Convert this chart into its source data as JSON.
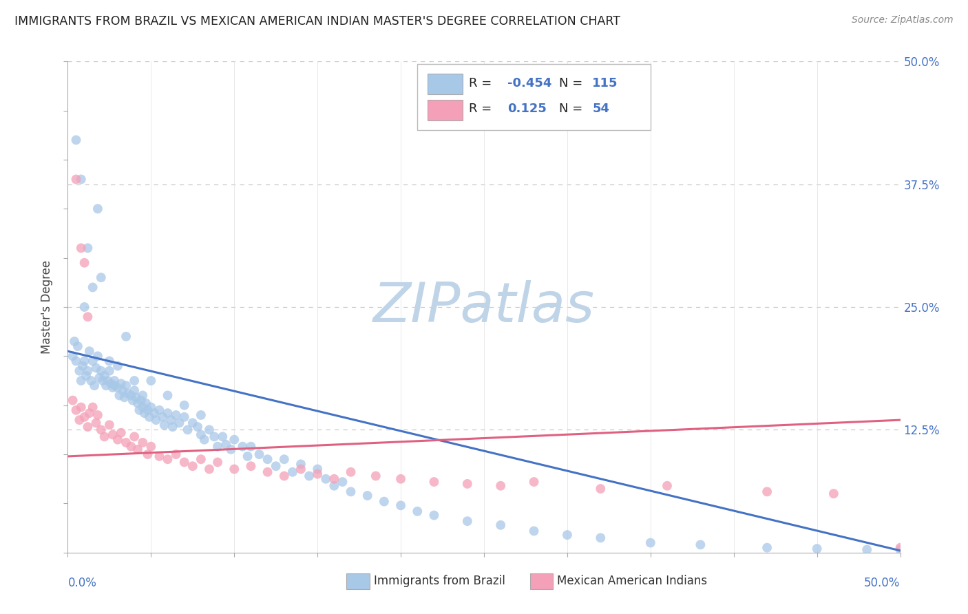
{
  "title": "IMMIGRANTS FROM BRAZIL VS MEXICAN AMERICAN INDIAN MASTER'S DEGREE CORRELATION CHART",
  "source": "Source: ZipAtlas.com",
  "ylabel": "Master's Degree",
  "xlim": [
    0.0,
    0.5
  ],
  "ylim": [
    0.0,
    0.5
  ],
  "right_yticks": [
    0.0,
    0.125,
    0.25,
    0.375,
    0.5
  ],
  "right_yticklabels": [
    "",
    "12.5%",
    "25.0%",
    "37.5%",
    "50.0%"
  ],
  "legend1_r": "-0.454",
  "legend1_n": "115",
  "legend2_r": "0.125",
  "legend2_n": "54",
  "blue_color": "#a8c8e8",
  "pink_color": "#f4a0b8",
  "blue_line_color": "#4472c4",
  "pink_line_color": "#e06080",
  "watermark": "ZIPatlas",
  "watermark_color": "#c0d4e8",
  "blue_trend_x0": 0.0,
  "blue_trend_y0": 0.205,
  "blue_trend_x1": 0.5,
  "blue_trend_y1": 0.002,
  "pink_trend_x0": 0.0,
  "pink_trend_y0": 0.098,
  "pink_trend_x1": 0.5,
  "pink_trend_y1": 0.135,
  "blue_scatter_x": [
    0.003,
    0.004,
    0.005,
    0.006,
    0.007,
    0.008,
    0.009,
    0.01,
    0.011,
    0.012,
    0.013,
    0.014,
    0.015,
    0.016,
    0.017,
    0.018,
    0.019,
    0.02,
    0.021,
    0.022,
    0.023,
    0.024,
    0.025,
    0.026,
    0.027,
    0.028,
    0.03,
    0.031,
    0.032,
    0.033,
    0.034,
    0.035,
    0.036,
    0.038,
    0.039,
    0.04,
    0.041,
    0.042,
    0.043,
    0.044,
    0.045,
    0.046,
    0.047,
    0.048,
    0.049,
    0.05,
    0.052,
    0.053,
    0.055,
    0.057,
    0.058,
    0.06,
    0.062,
    0.063,
    0.065,
    0.067,
    0.07,
    0.072,
    0.075,
    0.078,
    0.08,
    0.082,
    0.085,
    0.088,
    0.09,
    0.093,
    0.095,
    0.098,
    0.1,
    0.105,
    0.108,
    0.11,
    0.115,
    0.12,
    0.125,
    0.13,
    0.135,
    0.14,
    0.145,
    0.15,
    0.155,
    0.16,
    0.165,
    0.17,
    0.18,
    0.19,
    0.2,
    0.21,
    0.22,
    0.24,
    0.26,
    0.28,
    0.3,
    0.32,
    0.35,
    0.38,
    0.42,
    0.45,
    0.48,
    0.5,
    0.005,
    0.008,
    0.01,
    0.012,
    0.015,
    0.018,
    0.02,
    0.025,
    0.028,
    0.03,
    0.035,
    0.04,
    0.045,
    0.05,
    0.06,
    0.07,
    0.08
  ],
  "blue_scatter_y": [
    0.2,
    0.215,
    0.195,
    0.21,
    0.185,
    0.175,
    0.19,
    0.195,
    0.18,
    0.185,
    0.205,
    0.175,
    0.195,
    0.17,
    0.188,
    0.2,
    0.178,
    0.185,
    0.175,
    0.18,
    0.17,
    0.175,
    0.185,
    0.172,
    0.168,
    0.175,
    0.168,
    0.16,
    0.172,
    0.165,
    0.158,
    0.17,
    0.162,
    0.16,
    0.155,
    0.165,
    0.158,
    0.152,
    0.145,
    0.155,
    0.148,
    0.142,
    0.152,
    0.145,
    0.138,
    0.148,
    0.142,
    0.135,
    0.145,
    0.138,
    0.13,
    0.142,
    0.135,
    0.128,
    0.14,
    0.132,
    0.138,
    0.125,
    0.132,
    0.128,
    0.12,
    0.115,
    0.125,
    0.118,
    0.108,
    0.118,
    0.11,
    0.105,
    0.115,
    0.108,
    0.098,
    0.108,
    0.1,
    0.095,
    0.088,
    0.095,
    0.082,
    0.09,
    0.078,
    0.085,
    0.075,
    0.068,
    0.072,
    0.062,
    0.058,
    0.052,
    0.048,
    0.042,
    0.038,
    0.032,
    0.028,
    0.022,
    0.018,
    0.015,
    0.01,
    0.008,
    0.005,
    0.004,
    0.003,
    0.003,
    0.42,
    0.38,
    0.25,
    0.31,
    0.27,
    0.35,
    0.28,
    0.195,
    0.17,
    0.19,
    0.22,
    0.175,
    0.16,
    0.175,
    0.16,
    0.15,
    0.14
  ],
  "pink_scatter_x": [
    0.003,
    0.005,
    0.007,
    0.008,
    0.01,
    0.012,
    0.013,
    0.015,
    0.017,
    0.018,
    0.02,
    0.022,
    0.025,
    0.027,
    0.03,
    0.032,
    0.035,
    0.038,
    0.04,
    0.042,
    0.045,
    0.048,
    0.05,
    0.055,
    0.06,
    0.065,
    0.07,
    0.075,
    0.08,
    0.085,
    0.09,
    0.1,
    0.11,
    0.12,
    0.13,
    0.14,
    0.15,
    0.16,
    0.17,
    0.185,
    0.2,
    0.22,
    0.24,
    0.26,
    0.28,
    0.32,
    0.36,
    0.42,
    0.46,
    0.5,
    0.005,
    0.008,
    0.01,
    0.012
  ],
  "pink_scatter_y": [
    0.155,
    0.145,
    0.135,
    0.148,
    0.138,
    0.128,
    0.142,
    0.148,
    0.132,
    0.14,
    0.125,
    0.118,
    0.13,
    0.12,
    0.115,
    0.122,
    0.112,
    0.108,
    0.118,
    0.105,
    0.112,
    0.1,
    0.108,
    0.098,
    0.095,
    0.1,
    0.092,
    0.088,
    0.095,
    0.085,
    0.092,
    0.085,
    0.088,
    0.082,
    0.078,
    0.085,
    0.08,
    0.075,
    0.082,
    0.078,
    0.075,
    0.072,
    0.07,
    0.068,
    0.072,
    0.065,
    0.068,
    0.062,
    0.06,
    0.005,
    0.38,
    0.31,
    0.295,
    0.24
  ]
}
